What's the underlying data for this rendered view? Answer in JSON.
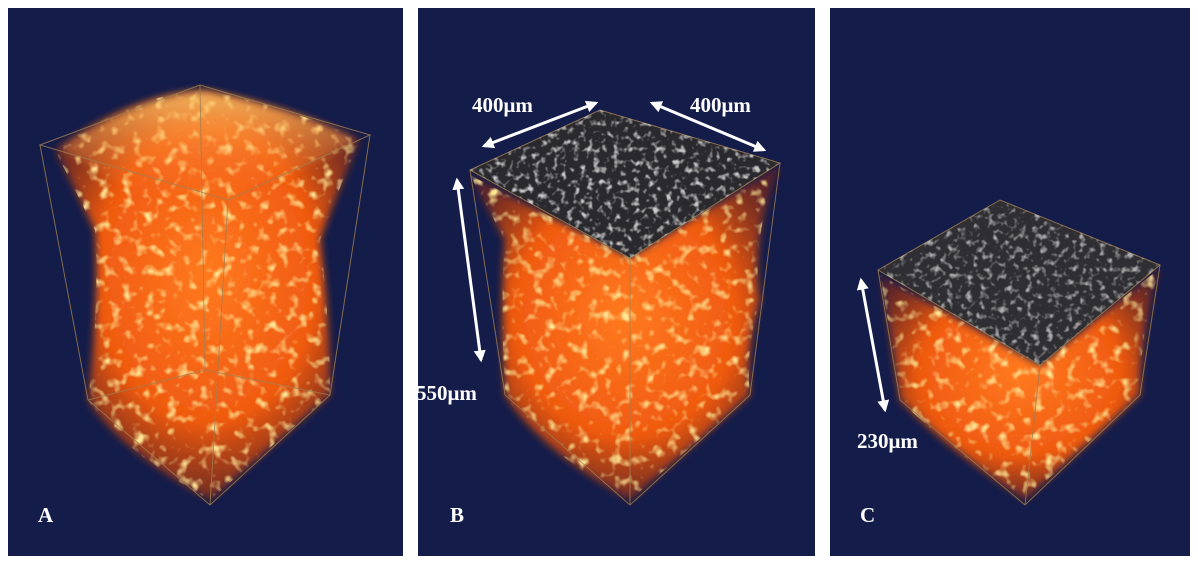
{
  "panels": [
    {
      "label": "A"
    },
    {
      "label": "B",
      "dimensions": [
        "400μm",
        "400μm",
        "550μm"
      ]
    },
    {
      "label": "C",
      "dimensions": [
        "230μm"
      ]
    }
  ]
}
